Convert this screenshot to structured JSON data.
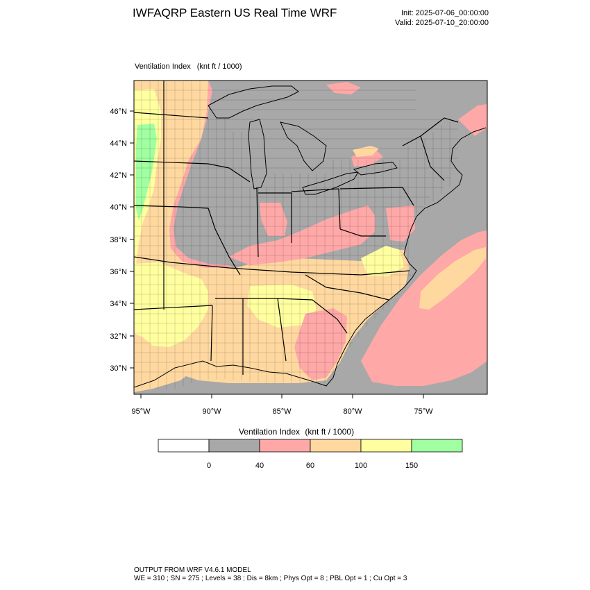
{
  "header": {
    "title": "IWFAQRP Eastern US Real Time WRF",
    "init": "Init: 2025-07-06_00:00:00",
    "valid": "Valid: 2025-07-10_20:00:00"
  },
  "plot": {
    "field": "Ventilation Index",
    "units": "(knt ft / 1000)"
  },
  "map": {
    "lat_labels": [
      "46°N",
      "44°N",
      "42°N",
      "40°N",
      "38°N",
      "36°N",
      "34°N",
      "32°N",
      "30°N"
    ],
    "lon_labels": [
      "95°W",
      "90°W",
      "85°W",
      "80°W",
      "75°W"
    ],
    "colors": {
      "none": "#ffffff",
      "0_40": "#a8a8a8",
      "40_60": "#ffa8a8",
      "60_100": "#ffd8a0",
      "100_150": "#ffffa0",
      "150_plus": "#a0ffa0",
      "borders": "#000000"
    }
  },
  "colorbar": {
    "title": "Ventilation Index",
    "units": "(knt ft / 1000)",
    "colors": [
      "#ffffff",
      "#a8a8a8",
      "#ffa8a8",
      "#ffd8a0",
      "#ffffa0",
      "#a0ffa0"
    ],
    "labels": [
      "0",
      "40",
      "60",
      "100",
      "150"
    ]
  },
  "footer": {
    "line1": "OUTPUT FROM WRF V4.6.1 MODEL",
    "line2": "WE = 310 ; SN = 275 ; Levels = 38 ; Dis = 8km ; Phys Opt = 8 ; PBL Opt = 1 ; Cu Opt = 3"
  }
}
